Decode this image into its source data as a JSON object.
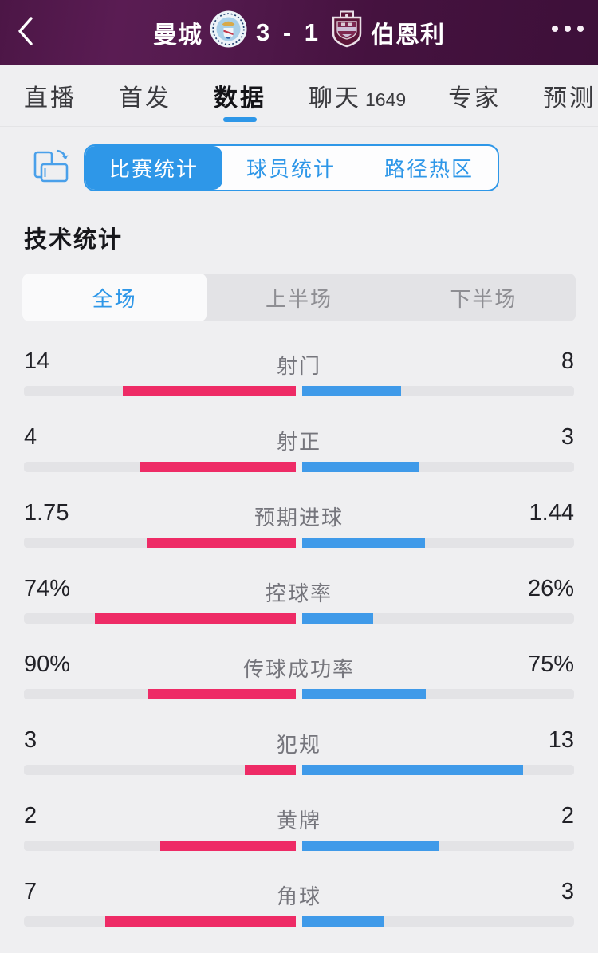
{
  "colors": {
    "page_bg": "#efeff1",
    "header_bg": "#4c1646",
    "accent_blue": "#2e97e8",
    "home_bar": "#ee2b66",
    "away_bar": "#3f9ae9",
    "track": "#e3e3e6"
  },
  "header": {
    "home_team": "曼城",
    "score": "3 - 1",
    "away_team": "伯恩利",
    "back_icon": "chevron-left",
    "more_icon": "ellipsis-horizontal",
    "home_badge": "manchester-city-crest",
    "away_badge": "burnley-crest"
  },
  "nav_tabs": [
    {
      "label": "直播",
      "active": false
    },
    {
      "label": "首发",
      "active": false
    },
    {
      "label": "数据",
      "active": true
    },
    {
      "label": "聊天",
      "count": "1649",
      "active": false
    },
    {
      "label": "专家",
      "active": false
    },
    {
      "label": "预测",
      "active": false
    }
  ],
  "stat_tabs": [
    {
      "label": "比赛统计",
      "active": true
    },
    {
      "label": "球员统计",
      "active": false
    },
    {
      "label": "路径热区",
      "active": false
    }
  ],
  "section_title": "技术统计",
  "period_tabs": [
    {
      "label": "全场",
      "active": true
    },
    {
      "label": "上半场",
      "active": false
    },
    {
      "label": "下半场",
      "active": false
    }
  ],
  "stats": [
    {
      "label": "射门",
      "home": "14",
      "away": "8",
      "home_num": 14,
      "away_num": 8
    },
    {
      "label": "射正",
      "home": "4",
      "away": "3",
      "home_num": 4,
      "away_num": 3
    },
    {
      "label": "预期进球",
      "home": "1.75",
      "away": "1.44",
      "home_num": 1.75,
      "away_num": 1.44
    },
    {
      "label": "控球率",
      "home": "74%",
      "away": "26%",
      "home_num": 74,
      "away_num": 26
    },
    {
      "label": "传球成功率",
      "home": "90%",
      "away": "75%",
      "home_num": 90,
      "away_num": 75
    },
    {
      "label": "犯规",
      "home": "3",
      "away": "13",
      "home_num": 3,
      "away_num": 13
    },
    {
      "label": "黄牌",
      "home": "2",
      "away": "2",
      "home_num": 2,
      "away_num": 2
    },
    {
      "label": "角球",
      "home": "7",
      "away": "3",
      "home_num": 7,
      "away_num": 3
    }
  ],
  "chart_data": {
    "type": "bar",
    "title": "技术统计",
    "layout": "horizontal-diverging-from-center",
    "categories": [
      "射门",
      "射正",
      "预期进球",
      "控球率",
      "传球成功率",
      "犯规",
      "黄牌",
      "角球"
    ],
    "series": [
      {
        "name": "曼城",
        "color": "#ee2b66",
        "values": [
          14,
          4,
          1.75,
          74,
          90,
          3,
          2,
          7
        ]
      },
      {
        "name": "伯恩利",
        "color": "#3f9ae9",
        "values": [
          8,
          3,
          1.44,
          26,
          75,
          13,
          2,
          3
        ]
      }
    ]
  }
}
